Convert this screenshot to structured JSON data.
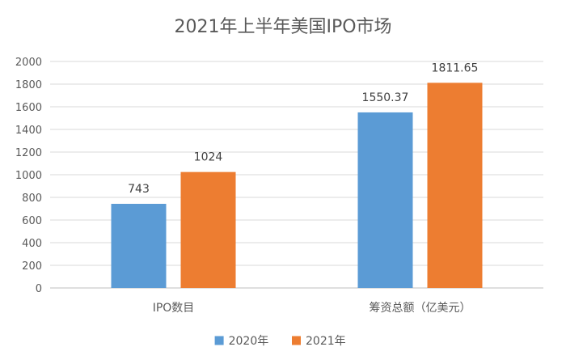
{
  "chart_data": {
    "type": "bar",
    "title": "2021年上半年美国IPO市场",
    "categories": [
      "IPO数目",
      "筹资总额（亿美元）"
    ],
    "series": [
      {
        "name": "2020年",
        "values": [
          743,
          1550.37
        ],
        "labels": [
          "743",
          "1550.37"
        ],
        "color": "#5b9bd5"
      },
      {
        "name": "2021年",
        "values": [
          1024,
          1811.65
        ],
        "labels": [
          "1024",
          "1811.65"
        ],
        "color": "#ed7d31"
      }
    ],
    "ylim": [
      0,
      2000
    ],
    "yticks": [
      0,
      200,
      400,
      600,
      800,
      1000,
      1200,
      1400,
      1600,
      1800,
      2000
    ],
    "xlabel": "",
    "ylabel": "",
    "grid": true,
    "legend": "bottom"
  }
}
